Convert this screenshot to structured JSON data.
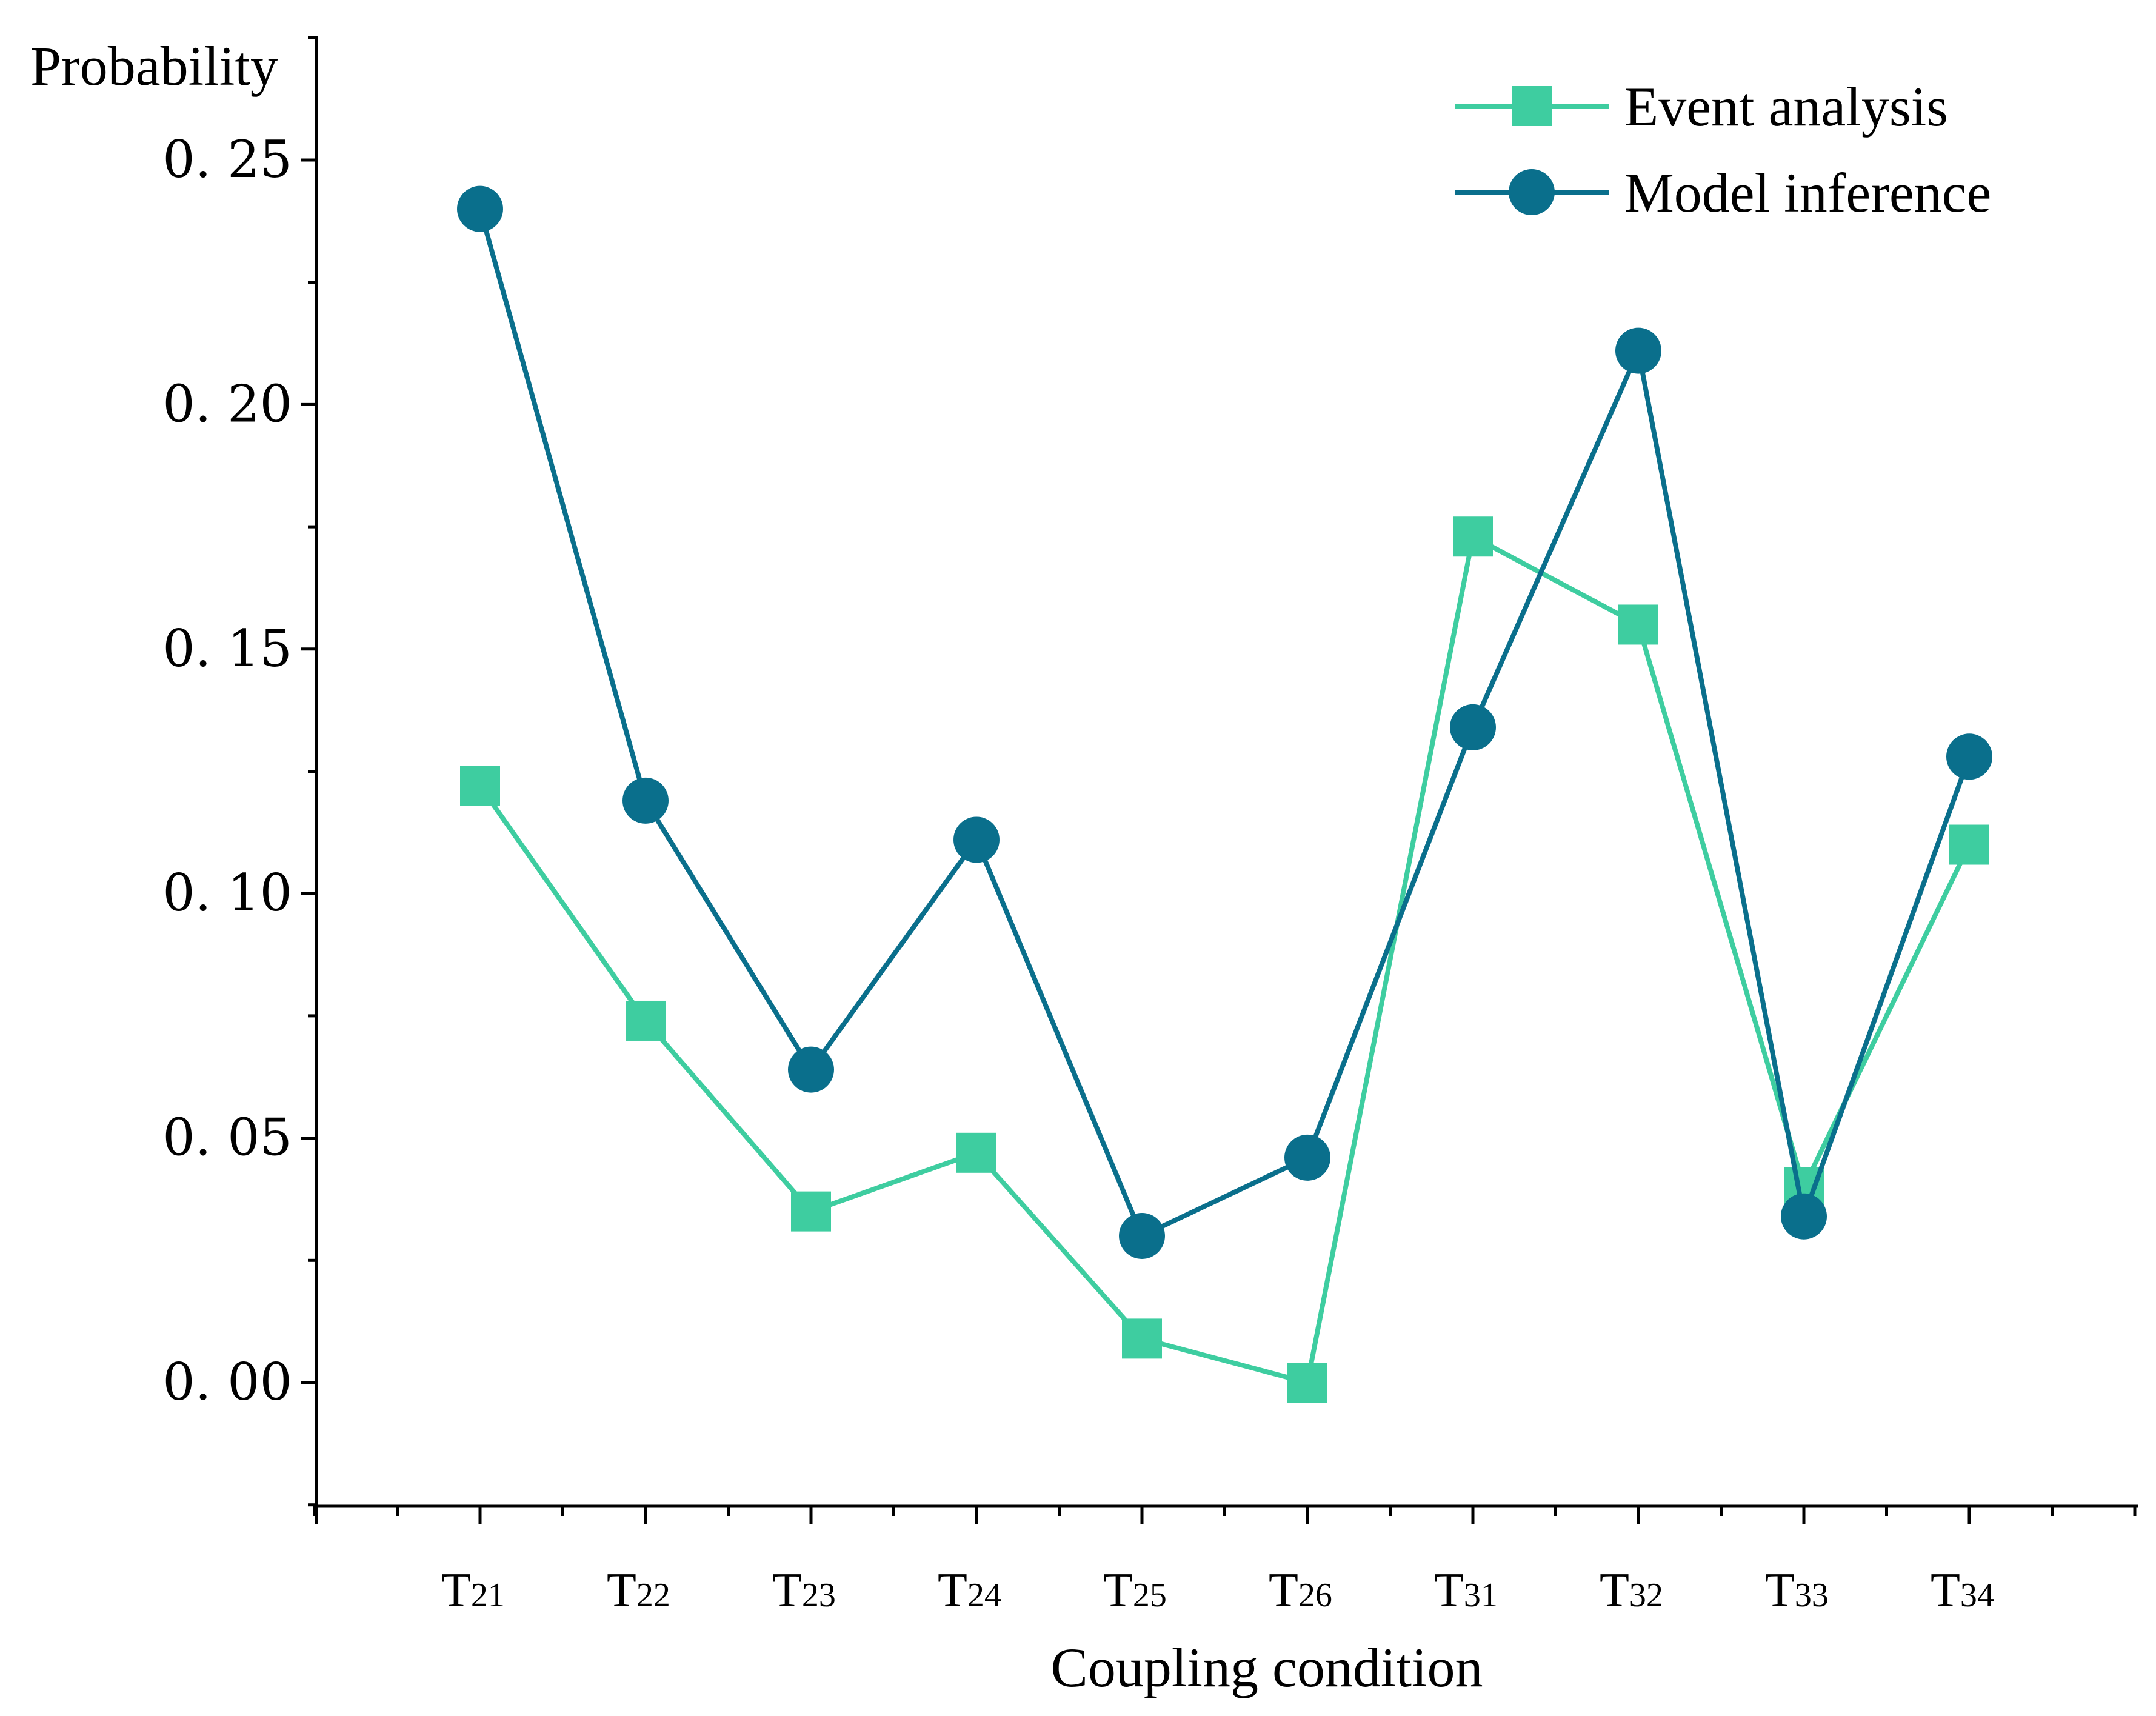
{
  "chart_data": {
    "type": "line",
    "title": "",
    "xlabel": "Coupling condition",
    "ylabel": "Probability",
    "categories": [
      {
        "main": "T",
        "sub": "21"
      },
      {
        "main": "T",
        "sub": "22"
      },
      {
        "main": "T",
        "sub": "23"
      },
      {
        "main": "T",
        "sub": "24"
      },
      {
        "main": "T",
        "sub": "25"
      },
      {
        "main": "T",
        "sub": "26"
      },
      {
        "main": "T",
        "sub": "31"
      },
      {
        "main": "T",
        "sub": "32"
      },
      {
        "main": "T",
        "sub": "33"
      },
      {
        "main": "T",
        "sub": "34"
      }
    ],
    "ylim": [
      -0.025,
      0.275
    ],
    "yticks": [
      {
        "value": 0.0,
        "label": "0. 00"
      },
      {
        "value": 0.05,
        "label": "0. 05"
      },
      {
        "value": 0.1,
        "label": "0. 10"
      },
      {
        "value": 0.15,
        "label": "0. 15"
      },
      {
        "value": 0.2,
        "label": "0. 20"
      },
      {
        "value": 0.25,
        "label": "0. 25"
      }
    ],
    "legend_position": "top-right",
    "series": [
      {
        "name": "Event analysis",
        "marker": "square",
        "color": "#3ecda0",
        "values": [
          0.122,
          0.074,
          0.035,
          0.047,
          0.009,
          0.0,
          0.173,
          0.155,
          0.04,
          0.11
        ]
      },
      {
        "name": "Model inference",
        "marker": "circle",
        "color": "#0a6f8c",
        "values": [
          0.24,
          0.119,
          0.064,
          0.111,
          0.03,
          0.046,
          0.134,
          0.211,
          0.034,
          0.128
        ]
      }
    ]
  }
}
